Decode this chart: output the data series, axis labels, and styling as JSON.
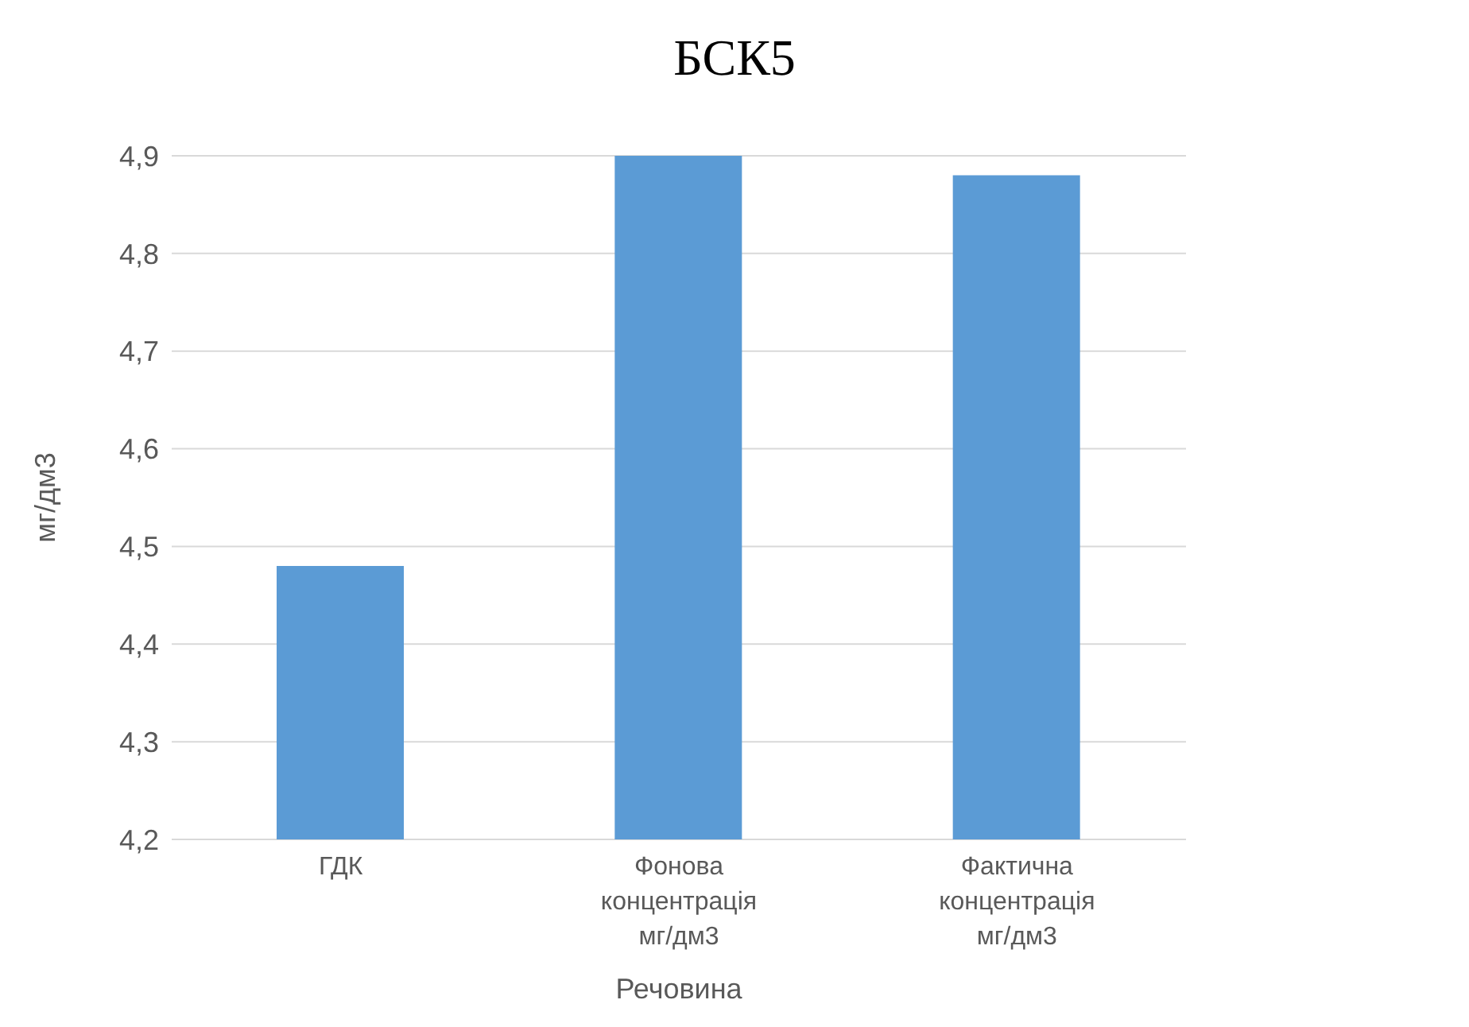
{
  "chart_data": {
    "type": "bar",
    "title": "БСК5",
    "xlabel": "Речовина",
    "ylabel": "мг/дм3",
    "categories": [
      "ГДК",
      "Фонова концентрація мг/дм3",
      "Фактична концентрація мг/дм3"
    ],
    "values": [
      4.48,
      4.9,
      4.88
    ],
    "color": "#5b9bd5",
    "ylim": [
      4.2,
      4.9
    ],
    "yticks": [
      {
        "value": 4.2,
        "label": "4,2"
      },
      {
        "value": 4.3,
        "label": "4,3"
      },
      {
        "value": 4.4,
        "label": "4,4"
      },
      {
        "value": 4.5,
        "label": "4,5"
      },
      {
        "value": 4.6,
        "label": "4,6"
      },
      {
        "value": 4.7,
        "label": "4,7"
      },
      {
        "value": 4.8,
        "label": "4,8"
      },
      {
        "value": 4.9,
        "label": "4,9"
      }
    ],
    "grid": "y"
  }
}
